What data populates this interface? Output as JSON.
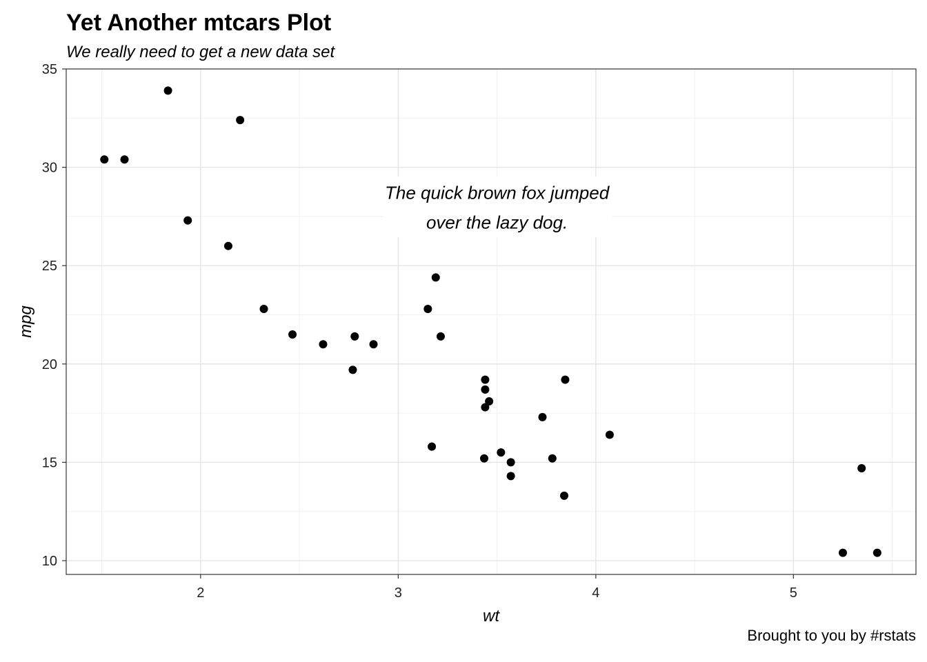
{
  "chart_data": {
    "type": "scatter",
    "title": "Yet Another mtcars Plot",
    "subtitle": "We really need to get a new data set",
    "caption": "Brought to you by #rstats",
    "xlabel": "wt",
    "ylabel": "mpg",
    "xlim": [
      1.32,
      5.62
    ],
    "ylim": [
      9.3,
      35.0
    ],
    "xticks": [
      2,
      3,
      4,
      5
    ],
    "yticks": [
      10,
      15,
      20,
      25,
      30,
      35
    ],
    "grid": true,
    "annotation": {
      "lines": [
        "The quick brown fox jumped",
        "over the lazy dog."
      ],
      "x": 3.5,
      "y": 28
    },
    "points": [
      {
        "x": 2.62,
        "y": 21.0
      },
      {
        "x": 2.875,
        "y": 21.0
      },
      {
        "x": 2.32,
        "y": 22.8
      },
      {
        "x": 3.215,
        "y": 21.4
      },
      {
        "x": 3.44,
        "y": 18.7
      },
      {
        "x": 3.46,
        "y": 18.1
      },
      {
        "x": 3.57,
        "y": 14.3
      },
      {
        "x": 3.19,
        "y": 24.4
      },
      {
        "x": 3.15,
        "y": 22.8
      },
      {
        "x": 3.44,
        "y": 19.2
      },
      {
        "x": 3.44,
        "y": 17.8
      },
      {
        "x": 4.07,
        "y": 16.4
      },
      {
        "x": 3.73,
        "y": 17.3
      },
      {
        "x": 3.78,
        "y": 15.2
      },
      {
        "x": 5.25,
        "y": 10.4
      },
      {
        "x": 5.424,
        "y": 10.4
      },
      {
        "x": 5.345,
        "y": 14.7
      },
      {
        "x": 2.2,
        "y": 32.4
      },
      {
        "x": 1.615,
        "y": 30.4
      },
      {
        "x": 1.835,
        "y": 33.9
      },
      {
        "x": 2.465,
        "y": 21.5
      },
      {
        "x": 3.52,
        "y": 15.5
      },
      {
        "x": 3.435,
        "y": 15.2
      },
      {
        "x": 3.84,
        "y": 13.3
      },
      {
        "x": 3.845,
        "y": 19.2
      },
      {
        "x": 1.935,
        "y": 27.3
      },
      {
        "x": 2.14,
        "y": 26.0
      },
      {
        "x": 1.513,
        "y": 30.4
      },
      {
        "x": 3.17,
        "y": 15.8
      },
      {
        "x": 2.77,
        "y": 19.7
      },
      {
        "x": 3.57,
        "y": 15.0
      },
      {
        "x": 2.78,
        "y": 21.4
      }
    ]
  }
}
